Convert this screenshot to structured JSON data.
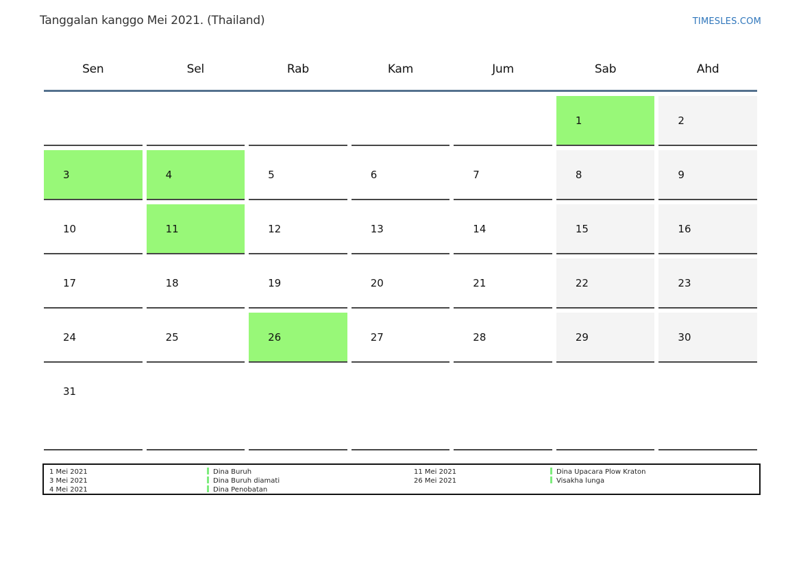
{
  "title": "Tanggalan kanggo Mei 2021. (Thailand)",
  "brand": "TIMESLES.COM",
  "weekdays": [
    "Sen",
    "Sel",
    "Rab",
    "Kam",
    "Jum",
    "Sab",
    "Ahd"
  ],
  "weeks": [
    [
      {
        "day": "",
        "type": "empty"
      },
      {
        "day": "",
        "type": "empty"
      },
      {
        "day": "",
        "type": "empty"
      },
      {
        "day": "",
        "type": "empty"
      },
      {
        "day": "",
        "type": "empty"
      },
      {
        "day": "1",
        "type": "holiday"
      },
      {
        "day": "2",
        "type": "weekend"
      }
    ],
    [
      {
        "day": "3",
        "type": "holiday"
      },
      {
        "day": "4",
        "type": "holiday"
      },
      {
        "day": "5",
        "type": "normal"
      },
      {
        "day": "6",
        "type": "normal"
      },
      {
        "day": "7",
        "type": "normal"
      },
      {
        "day": "8",
        "type": "weekend"
      },
      {
        "day": "9",
        "type": "weekend"
      }
    ],
    [
      {
        "day": "10",
        "type": "normal"
      },
      {
        "day": "11",
        "type": "holiday"
      },
      {
        "day": "12",
        "type": "normal"
      },
      {
        "day": "13",
        "type": "normal"
      },
      {
        "day": "14",
        "type": "normal"
      },
      {
        "day": "15",
        "type": "weekend"
      },
      {
        "day": "16",
        "type": "weekend"
      }
    ],
    [
      {
        "day": "17",
        "type": "normal"
      },
      {
        "day": "18",
        "type": "normal"
      },
      {
        "day": "19",
        "type": "normal"
      },
      {
        "day": "20",
        "type": "normal"
      },
      {
        "day": "21",
        "type": "normal"
      },
      {
        "day": "22",
        "type": "weekend"
      },
      {
        "day": "23",
        "type": "weekend"
      }
    ],
    [
      {
        "day": "24",
        "type": "normal"
      },
      {
        "day": "25",
        "type": "normal"
      },
      {
        "day": "26",
        "type": "holiday"
      },
      {
        "day": "27",
        "type": "normal"
      },
      {
        "day": "28",
        "type": "normal"
      },
      {
        "day": "29",
        "type": "weekend"
      },
      {
        "day": "30",
        "type": "weekend"
      }
    ],
    [
      {
        "day": "31",
        "type": "normal"
      },
      {
        "day": "",
        "type": "empty"
      },
      {
        "day": "",
        "type": "empty"
      },
      {
        "day": "",
        "type": "empty"
      },
      {
        "day": "",
        "type": "empty"
      },
      {
        "day": "",
        "type": "empty"
      },
      {
        "day": "",
        "type": "empty"
      }
    ]
  ],
  "legend": {
    "groups": [
      {
        "dates": [
          "1 Mei 2021",
          "3 Mei 2021",
          "4 Mei 2021"
        ],
        "events": [
          "Dina Buruh",
          "Dina Buruh diamati",
          "Dina Penobatan"
        ]
      },
      {
        "dates": [
          "11 Mei 2021",
          "26 Mei 2021"
        ],
        "events": [
          "Dina Upacara Plow Kraton",
          "Visakha lunga"
        ]
      }
    ]
  },
  "colors": {
    "holiday_green": "#98f878",
    "weekend_gray": "#f4f4f4",
    "header_rule_blue": "#54718e",
    "cell_border": "#454545",
    "brand_blue": "#2f76bb",
    "legend_marker_green": "#7dec7d",
    "legend_border": "#111111"
  }
}
